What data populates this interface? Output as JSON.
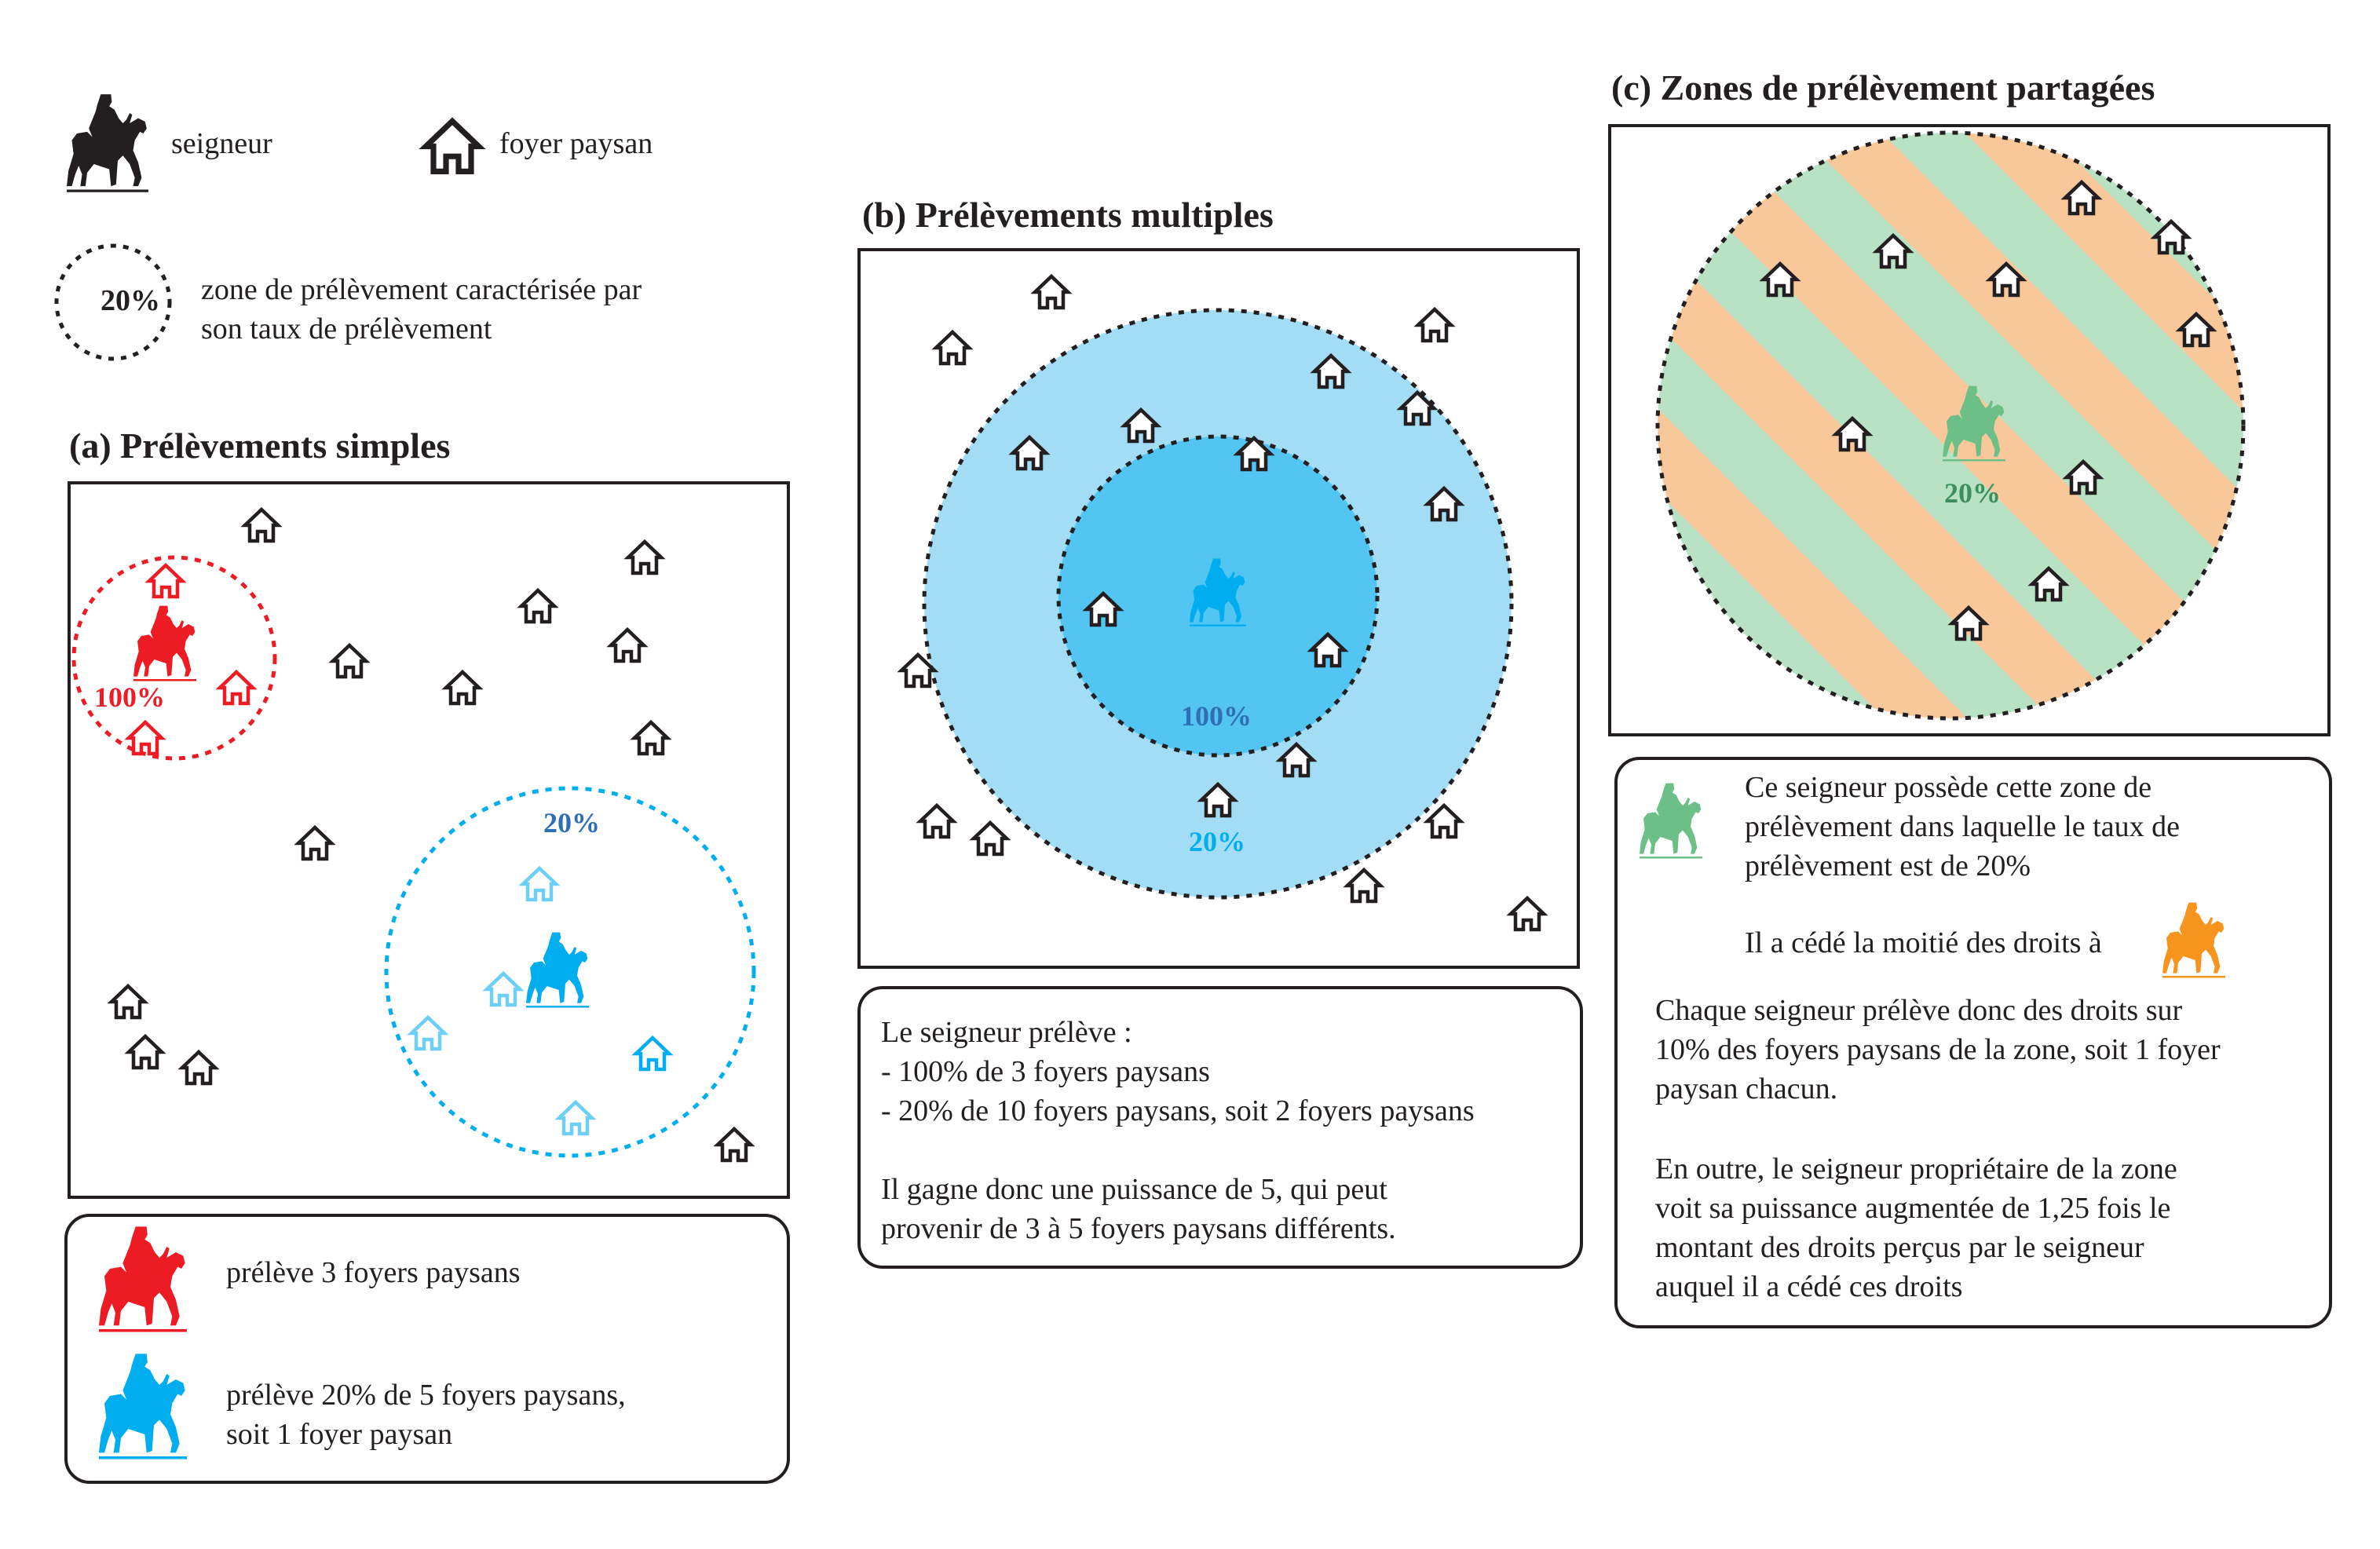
{
  "legend": {
    "lord_label": "seigneur",
    "household_label": "foyer paysan",
    "zone_example_rate": "20%",
    "zone_label_line1": "zone de prélèvement caractérisée par",
    "zone_label_line2": "son taux de prélèvement"
  },
  "panel_a": {
    "title": "(a) Prélèvements simples",
    "red_zone_rate": "100%",
    "blue_zone_rate": "20%",
    "explanation": {
      "red_line1": "prélève 3 foyers paysans",
      "blue_line1": "prélève 20% de 5 foyers paysans,",
      "blue_line2": "soit 1 foyer paysan"
    }
  },
  "panel_b": {
    "title": "(b) Prélèvements multiples",
    "inner_zone_rate": "100%",
    "outer_zone_rate": "20%",
    "explanation": {
      "line1": "Le seigneur prélève :",
      "line2": "- 100% de 3 foyers paysans",
      "line3": "- 20% de 10 foyers paysans, soit 2 foyers paysans",
      "line4": "Il gagne donc une puissance de 5, qui peut",
      "line5": "provenir de 3 à 5 foyers paysans différents."
    }
  },
  "panel_c": {
    "title": "(c) Zones de prélèvement partagées",
    "zone_rate": "20%",
    "explanation": {
      "line1": "Ce seigneur possède cette zone de",
      "line2": "prélèvement dans laquelle le taux de",
      "line3": "prélèvement est de 20%",
      "line4": "Il a cédé la moitié des droits à",
      "line5": "Chaque seigneur prélève donc des droits sur",
      "line6": "10% des foyers paysans de la zone, soit 1 foyer",
      "line7": "paysan chacun.",
      "line8": "En outre, le seigneur propriétaire de la zone",
      "line9": "voit sa puissance augmentée de 1,25 fois le",
      "line10": "montant des droits perçus par le seigneur",
      "line11": "auquel il a cédé ces droits"
    }
  },
  "colors": {
    "ink": "#231f20",
    "red_lord": "#ed1c24",
    "blue_lord": "#00aeef",
    "light_blue_house": "#6dcff6",
    "blue_outer_fill": "#a3dcf5",
    "blue_inner_fill": "#52c5f2",
    "green_lord": "#6cbf87",
    "orange_lord": "#f7941d",
    "green_stripe": "#b8e2c3",
    "orange_stripe": "#f8c89b",
    "rate_text_blue_dark": "#2e6eb5"
  },
  "icons": [
    "rider-icon",
    "house-icon"
  ]
}
